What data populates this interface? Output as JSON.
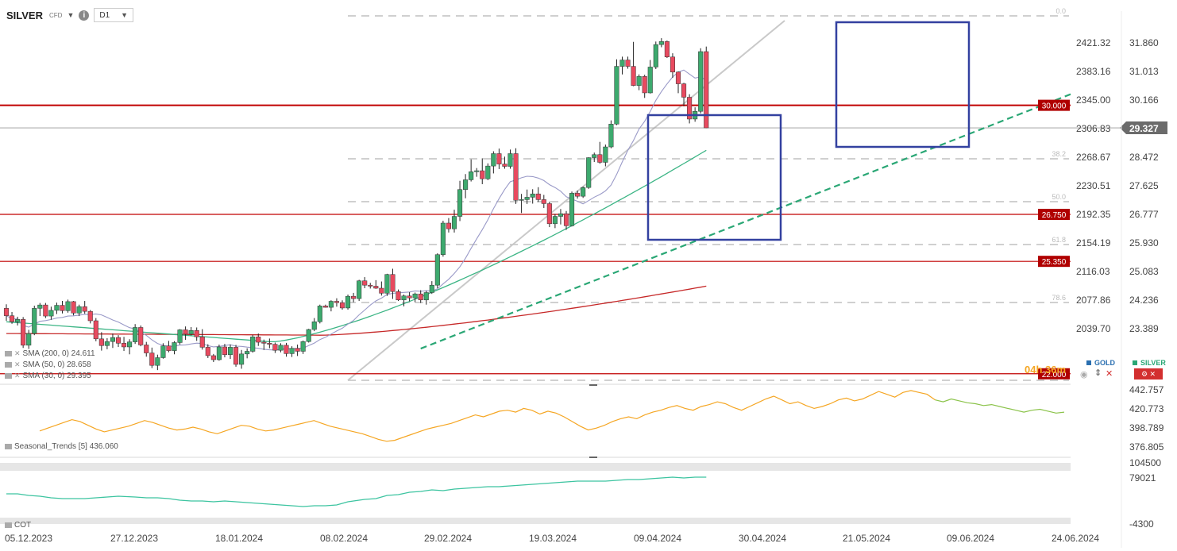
{
  "toolbar": {
    "symbol": "SILVER",
    "symbol_type": "CFD",
    "timeframe": "D1",
    "info_icon": "info-icon",
    "dropdown_icon": "caret-down-icon"
  },
  "colors": {
    "up": "#3daa6e",
    "down": "#e84a5f",
    "sma200": "#c62828",
    "sma50": "#3cb585",
    "sma30": "#9a9ac8",
    "hline": "#c00000",
    "box": "#3341a0",
    "trend": "#2aa775",
    "seasonal_hist": "#f5a623",
    "seasonal_fwd": "#8bc34a",
    "cot": "#3cc4a0"
  },
  "chart_data": {
    "type": "candlestick",
    "symbol": "SILVER",
    "timeframe": "D1",
    "x_tick_labels": [
      "05.12.2023",
      "27.12.2023",
      "18.01.2024",
      "08.02.2024",
      "29.02.2024",
      "19.03.2024",
      "09.04.2024",
      "30.04.2024",
      "21.05.2024",
      "09.06.2024",
      "24.06.2024"
    ],
    "left_axis_ticks": [
      "2421.32",
      "2383.16",
      "2345.00",
      "2306.83",
      "2268.67",
      "2230.51",
      "2192.35",
      "2154.19",
      "2116.03",
      "2077.86",
      "2039.70"
    ],
    "price_axis_ticks": [
      "31.860",
      "31.013",
      "30.166",
      "29.319",
      "28.472",
      "27.625",
      "26.777",
      "25.930",
      "25.083",
      "24.236",
      "23.389"
    ],
    "ylim": [
      22.542,
      32.284
    ],
    "ohlc": [
      [
        23.95,
        24.07,
        23.58,
        23.73
      ],
      [
        23.73,
        23.84,
        23.49,
        23.55
      ],
      [
        23.55,
        23.7,
        23.44,
        23.62
      ],
      [
        23.62,
        23.69,
        22.77,
        22.85
      ],
      [
        22.85,
        23.31,
        22.74,
        23.2
      ],
      [
        23.2,
        24.03,
        23.15,
        23.95
      ],
      [
        23.95,
        24.11,
        23.72,
        24.05
      ],
      [
        24.05,
        24.11,
        23.66,
        23.72
      ],
      [
        23.72,
        24.0,
        23.61,
        23.89
      ],
      [
        23.89,
        24.12,
        23.78,
        24.04
      ],
      [
        24.04,
        24.17,
        23.8,
        23.88
      ],
      [
        23.88,
        24.21,
        23.82,
        24.15
      ],
      [
        24.15,
        24.17,
        23.74,
        23.81
      ],
      [
        23.81,
        24.06,
        23.72,
        24.0
      ],
      [
        24.0,
        24.17,
        23.79,
        23.86
      ],
      [
        23.86,
        23.9,
        23.5,
        23.58
      ],
      [
        23.58,
        23.66,
        22.97,
        23.04
      ],
      [
        23.04,
        23.24,
        22.69,
        22.84
      ],
      [
        22.84,
        23.06,
        22.73,
        22.96
      ],
      [
        22.96,
        23.2,
        22.77,
        23.08
      ],
      [
        23.08,
        23.15,
        22.8,
        22.91
      ],
      [
        22.91,
        23.1,
        22.68,
        22.8
      ],
      [
        22.8,
        23.03,
        22.58,
        22.95
      ],
      [
        22.95,
        23.48,
        22.89,
        23.38
      ],
      [
        23.38,
        23.44,
        22.82,
        22.86
      ],
      [
        22.86,
        22.95,
        22.51,
        22.62
      ],
      [
        22.62,
        22.78,
        22.17,
        22.25
      ],
      [
        22.25,
        22.57,
        22.11,
        22.48
      ],
      [
        22.48,
        22.91,
        22.45,
        22.83
      ],
      [
        22.83,
        22.98,
        22.64,
        22.69
      ],
      [
        22.69,
        22.97,
        22.58,
        22.93
      ],
      [
        22.93,
        23.33,
        22.87,
        23.31
      ],
      [
        23.31,
        23.41,
        23.01,
        23.18
      ],
      [
        23.18,
        23.39,
        23.14,
        23.29
      ],
      [
        23.29,
        23.38,
        22.98,
        23.1
      ],
      [
        23.1,
        23.33,
        22.72,
        22.79
      ],
      [
        22.79,
        22.88,
        22.47,
        22.54
      ],
      [
        22.54,
        22.59,
        22.35,
        22.42
      ],
      [
        22.42,
        22.87,
        22.39,
        22.8
      ],
      [
        22.8,
        22.89,
        22.49,
        22.57
      ],
      [
        22.57,
        22.87,
        22.44,
        22.79
      ],
      [
        22.79,
        22.86,
        22.21,
        22.28
      ],
      [
        22.28,
        22.71,
        22.15,
        22.59
      ],
      [
        22.59,
        22.76,
        22.46,
        22.67
      ],
      [
        22.67,
        23.16,
        22.63,
        23.1
      ],
      [
        23.1,
        23.2,
        22.83,
        22.94
      ],
      [
        22.94,
        23.02,
        22.71,
        22.91
      ],
      [
        22.91,
        23.05,
        22.76,
        22.88
      ],
      [
        22.88,
        22.93,
        22.62,
        22.7
      ],
      [
        22.7,
        22.91,
        22.64,
        22.85
      ],
      [
        22.85,
        22.92,
        22.51,
        22.6
      ],
      [
        22.6,
        22.82,
        22.5,
        22.76
      ],
      [
        22.76,
        22.87,
        22.53,
        22.67
      ],
      [
        22.67,
        22.99,
        22.59,
        22.96
      ],
      [
        22.96,
        23.34,
        22.93,
        23.32
      ],
      [
        23.32,
        23.66,
        23.27,
        23.55
      ],
      [
        23.55,
        24.06,
        23.5,
        24.02
      ],
      [
        24.02,
        24.06,
        23.97,
        23.98
      ],
      [
        23.98,
        24.19,
        23.86,
        24.16
      ],
      [
        24.16,
        24.25,
        24.0,
        24.12
      ],
      [
        24.12,
        24.19,
        23.91,
        23.96
      ],
      [
        23.96,
        24.36,
        23.91,
        24.31
      ],
      [
        24.31,
        24.41,
        24.13,
        24.24
      ],
      [
        24.24,
        24.8,
        24.17,
        24.77
      ],
      [
        24.77,
        24.88,
        24.55,
        24.64
      ],
      [
        24.64,
        24.71,
        24.54,
        24.61
      ],
      [
        24.61,
        24.79,
        24.53,
        24.55
      ],
      [
        24.55,
        24.75,
        24.33,
        24.4
      ],
      [
        24.4,
        24.98,
        24.32,
        24.96
      ],
      [
        24.96,
        25.13,
        24.23,
        24.45
      ],
      [
        24.45,
        24.51,
        24.17,
        24.2
      ],
      [
        24.2,
        24.36,
        24.01,
        24.32
      ],
      [
        24.32,
        24.43,
        24.16,
        24.26
      ],
      [
        24.26,
        24.42,
        24.13,
        24.38
      ],
      [
        24.38,
        24.49,
        24.11,
        24.2
      ],
      [
        24.2,
        24.47,
        24.06,
        24.42
      ],
      [
        24.42,
        24.76,
        24.38,
        24.64
      ],
      [
        24.64,
        25.59,
        24.55,
        25.55
      ],
      [
        25.55,
        26.56,
        25.49,
        26.49
      ],
      [
        26.49,
        26.64,
        26.21,
        26.32
      ],
      [
        26.32,
        26.89,
        26.21,
        26.69
      ],
      [
        26.69,
        27.75,
        26.55,
        27.49
      ],
      [
        27.49,
        27.95,
        27.23,
        27.78
      ],
      [
        27.78,
        28.39,
        27.73,
        28.02
      ],
      [
        28.02,
        28.13,
        27.87,
        28.05
      ],
      [
        28.05,
        28.42,
        27.65,
        27.81
      ],
      [
        27.81,
        28.27,
        27.77,
        28.19
      ],
      [
        28.19,
        28.63,
        27.97,
        28.56
      ],
      [
        28.56,
        28.71,
        28.1,
        28.25
      ],
      [
        28.25,
        28.47,
        28.11,
        28.18
      ],
      [
        28.18,
        28.68,
        28.11,
        28.56
      ],
      [
        28.56,
        28.72,
        27.06,
        27.17
      ],
      [
        27.17,
        27.36,
        26.79,
        27.19
      ],
      [
        27.19,
        27.49,
        27.06,
        27.26
      ],
      [
        27.26,
        27.5,
        27.07,
        27.36
      ],
      [
        27.36,
        27.56,
        27.12,
        27.19
      ],
      [
        27.19,
        27.33,
        26.94,
        27.07
      ],
      [
        27.07,
        27.13,
        26.37,
        26.47
      ],
      [
        26.47,
        26.76,
        26.34,
        26.69
      ],
      [
        26.69,
        26.91,
        26.45,
        26.77
      ],
      [
        26.77,
        26.85,
        26.29,
        26.41
      ],
      [
        26.41,
        27.43,
        26.39,
        27.38
      ],
      [
        27.38,
        27.46,
        27.22,
        27.29
      ],
      [
        27.29,
        27.58,
        27.24,
        27.55
      ],
      [
        27.55,
        28.45,
        27.51,
        28.44
      ],
      [
        28.44,
        28.59,
        28.31,
        28.53
      ],
      [
        28.53,
        28.91,
        28.26,
        28.3
      ],
      [
        28.3,
        28.83,
        28.18,
        28.76
      ],
      [
        28.76,
        29.55,
        28.72,
        29.44
      ],
      [
        29.44,
        31.37,
        29.41,
        31.16
      ],
      [
        31.16,
        31.45,
        30.92,
        31.35
      ],
      [
        31.35,
        31.45,
        31.09,
        31.16
      ],
      [
        31.16,
        31.89,
        30.57,
        30.59
      ],
      [
        30.59,
        30.92,
        30.45,
        30.86
      ],
      [
        30.86,
        30.91,
        30.22,
        30.37
      ],
      [
        30.37,
        31.35,
        30.35,
        31.14
      ],
      [
        31.14,
        31.9,
        31.08,
        31.81
      ],
      [
        31.81,
        32.0,
        31.73,
        31.9
      ],
      [
        31.9,
        31.93,
        31.41,
        31.44
      ],
      [
        31.44,
        31.55,
        30.82,
        30.99
      ],
      [
        30.99,
        31.01,
        30.36,
        30.64
      ],
      [
        30.64,
        30.67,
        29.97,
        30.24
      ],
      [
        30.24,
        30.33,
        29.46,
        29.59
      ],
      [
        29.59,
        29.94,
        29.51,
        29.82
      ],
      [
        29.82,
        31.7,
        29.76,
        31.6
      ],
      [
        31.6,
        31.75,
        29.32,
        29.327
      ]
    ],
    "sma200_label": "SMA (200, 0) 24.611",
    "sma50_label": "SMA (50, 0) 28.658",
    "sma30_label": "SMA (30, 0) 29.395",
    "sma200": {
      "start": 23.2,
      "mid": 23.15,
      "end": 24.611
    },
    "sma50": {
      "start": 23.55,
      "low": 22.95,
      "end": 28.658
    },
    "sma30": {
      "start": 23.75,
      "low": 22.9,
      "end": 29.395
    },
    "horizontal_levels": [
      "30.000",
      "26.750",
      "25.350",
      "22.000"
    ],
    "level_values": [
      30.0,
      26.75,
      25.35,
      22.0
    ],
    "fib_labels": [
      "0.0",
      "38.2",
      "50.0",
      "61.8",
      "78.6"
    ],
    "current_price": "29.327",
    "countdown": "04h 36m",
    "legend_symbols": [
      "GOLD",
      "SILVER"
    ],
    "seasonal": {
      "label": "Seasonal_Trends [5] 436.060",
      "ticks": [
        "442.757",
        "420.773",
        "398.789",
        "376.805"
      ],
      "ylim": [
        376.805,
        442.757
      ]
    },
    "cot": {
      "label": "COT",
      "ticks": [
        "104500",
        "79021",
        "-4300"
      ]
    },
    "annotations": [
      "trendline",
      "blue box",
      "blue box",
      "fibonacci channel"
    ]
  }
}
